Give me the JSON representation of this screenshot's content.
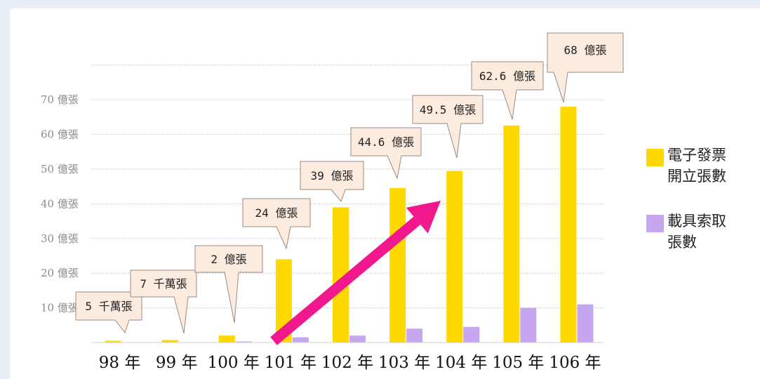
{
  "colors": {
    "issued": "#FFD800",
    "issued_edge": "#E6B800",
    "carrier": "#C6A6EE",
    "arrow": "#F0188C",
    "callout_fill": "#FCEBDF",
    "callout_stroke": "#9A8A80",
    "grid": "#c8c8c8"
  },
  "chart_data": {
    "type": "bar",
    "categories": [
      "98 年",
      "99 年",
      "100 年",
      "101 年",
      "102 年",
      "103 年",
      "104 年",
      "105 年",
      "106 年"
    ],
    "series": [
      {
        "name": "電子發票開立張數",
        "legend": [
          "電子發票",
          "開立張數"
        ],
        "values": [
          0.5,
          0.7,
          2,
          24,
          39,
          44.6,
          49.5,
          62.6,
          68
        ]
      },
      {
        "name": "載具索取張數",
        "legend": [
          "載具索取",
          "張數"
        ],
        "values": [
          0,
          0,
          0.3,
          1.5,
          2,
          4,
          4.5,
          10,
          11
        ]
      }
    ],
    "ylim": [
      0,
      75
    ],
    "yticks": [
      {
        "value": 10,
        "label": "10 億張"
      },
      {
        "value": 20,
        "label": "20 億張"
      },
      {
        "value": 30,
        "label": "30 億張"
      },
      {
        "value": 40,
        "label": "40 億張"
      },
      {
        "value": 50,
        "label": "50 億張"
      },
      {
        "value": 60,
        "label": "60 億張"
      },
      {
        "value": 70,
        "label": "70 億張"
      }
    ],
    "data_labels": [
      "5 千萬張",
      "7 千萬張",
      "2 億張",
      "24 億張",
      "39 億張",
      "44.6 億張",
      "49.5 億張",
      "62.6 億張",
      "68 億張"
    ],
    "grid": true,
    "legend_position": "right",
    "annotation": "upward trend arrow"
  }
}
